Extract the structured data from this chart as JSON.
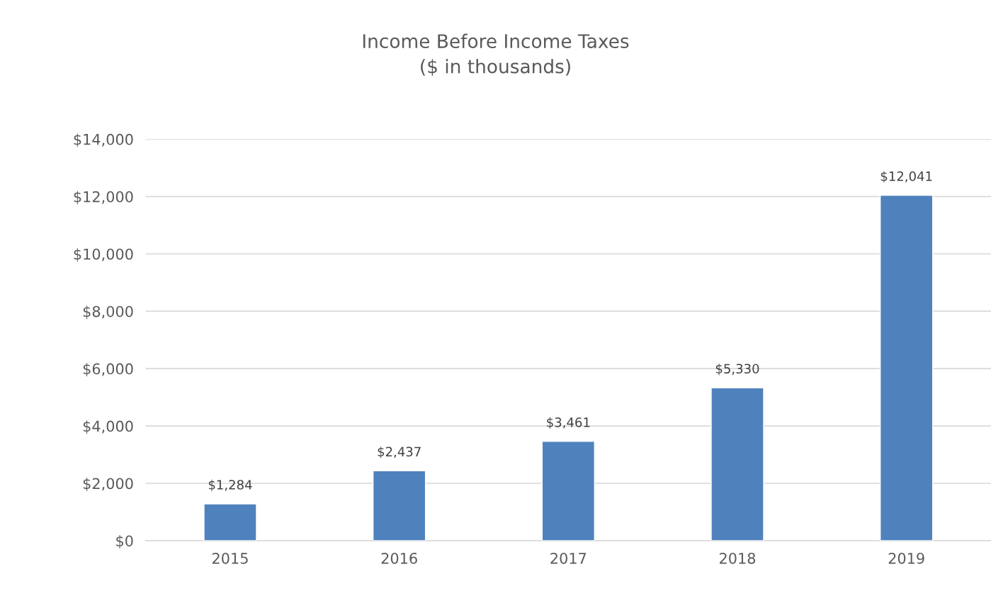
{
  "chart_data": {
    "type": "bar",
    "title": "Income Before Income Taxes\n($ in thousands)",
    "categories": [
      "2015",
      "2016",
      "2017",
      "2018",
      "2019"
    ],
    "values": [
      1284,
      2437,
      3461,
      5330,
      12041
    ],
    "value_labels": [
      "$1,284",
      "$2,437",
      "$3,461",
      "$5,330",
      "$12,041"
    ],
    "color": "#4f81bd",
    "ylim": [
      0,
      14000
    ],
    "yticks": [
      {
        "value": 0,
        "label": "$0"
      },
      {
        "value": 2000,
        "label": "$2,000"
      },
      {
        "value": 4000,
        "label": "$4,000"
      },
      {
        "value": 6000,
        "label": "$6,000"
      },
      {
        "value": 8000,
        "label": "$8,000"
      },
      {
        "value": 10000,
        "label": "$10,000"
      },
      {
        "value": 12000,
        "label": "$12,000"
      },
      {
        "value": 14000,
        "label": "$14,000"
      }
    ],
    "grid": "y",
    "legend": false
  }
}
